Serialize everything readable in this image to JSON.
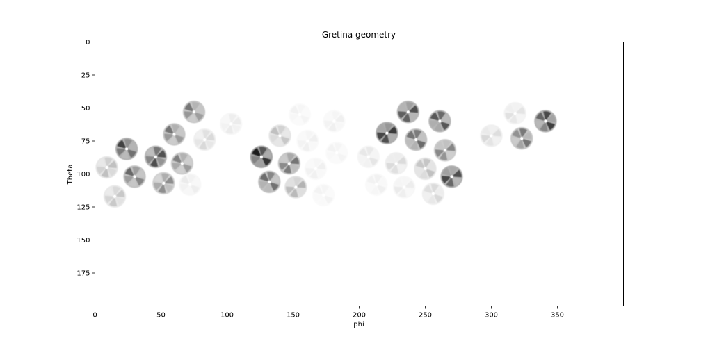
{
  "chart_data": {
    "type": "heatmap",
    "title": "Gretina geometry",
    "xlabel": "phi",
    "ylabel": "Theta",
    "xlim": [
      0,
      400
    ],
    "ylim": [
      200,
      0
    ],
    "x_ticks": [
      0,
      50,
      100,
      150,
      200,
      250,
      300,
      350
    ],
    "y_ticks": [
      0,
      25,
      50,
      75,
      100,
      125,
      150,
      175
    ],
    "colormap": "Greys",
    "grid": false,
    "blobs": [
      {
        "phi": 75,
        "theta": 53,
        "intensity": 0.55
      },
      {
        "phi": 103,
        "theta": 62,
        "intensity": 0.08
      },
      {
        "phi": 60,
        "theta": 70,
        "intensity": 0.55
      },
      {
        "phi": 83,
        "theta": 74,
        "intensity": 0.15
      },
      {
        "phi": 24,
        "theta": 81,
        "intensity": 0.75
      },
      {
        "phi": 46,
        "theta": 87,
        "intensity": 0.7
      },
      {
        "phi": 66,
        "theta": 92,
        "intensity": 0.5
      },
      {
        "phi": 9,
        "theta": 95,
        "intensity": 0.25
      },
      {
        "phi": 30,
        "theta": 102,
        "intensity": 0.6
      },
      {
        "phi": 52,
        "theta": 107,
        "intensity": 0.45
      },
      {
        "phi": 72,
        "theta": 108,
        "intensity": 0.08
      },
      {
        "phi": 15,
        "theta": 117,
        "intensity": 0.22
      },
      {
        "phi": 155,
        "theta": 55,
        "intensity": 0.05
      },
      {
        "phi": 181,
        "theta": 60,
        "intensity": 0.06
      },
      {
        "phi": 140,
        "theta": 71,
        "intensity": 0.25
      },
      {
        "phi": 161,
        "theta": 75,
        "intensity": 0.06
      },
      {
        "phi": 126,
        "theta": 87,
        "intensity": 0.9
      },
      {
        "phi": 147,
        "theta": 92,
        "intensity": 0.55
      },
      {
        "phi": 183,
        "theta": 84,
        "intensity": 0.05
      },
      {
        "phi": 167,
        "theta": 96,
        "intensity": 0.06
      },
      {
        "phi": 132,
        "theta": 106,
        "intensity": 0.6
      },
      {
        "phi": 152,
        "theta": 110,
        "intensity": 0.3
      },
      {
        "phi": 173,
        "theta": 116,
        "intensity": 0.05
      },
      {
        "phi": 237,
        "theta": 53,
        "intensity": 0.7
      },
      {
        "phi": 261,
        "theta": 60,
        "intensity": 0.7
      },
      {
        "phi": 221,
        "theta": 69,
        "intensity": 0.8
      },
      {
        "phi": 243,
        "theta": 74,
        "intensity": 0.6
      },
      {
        "phi": 265,
        "theta": 82,
        "intensity": 0.5
      },
      {
        "phi": 207,
        "theta": 87,
        "intensity": 0.1
      },
      {
        "phi": 228,
        "theta": 92,
        "intensity": 0.15
      },
      {
        "phi": 250,
        "theta": 96,
        "intensity": 0.25
      },
      {
        "phi": 270,
        "theta": 102,
        "intensity": 0.75
      },
      {
        "phi": 213,
        "theta": 108,
        "intensity": 0.06
      },
      {
        "phi": 234,
        "theta": 110,
        "intensity": 0.08
      },
      {
        "phi": 256,
        "theta": 115,
        "intensity": 0.15
      },
      {
        "phi": 318,
        "theta": 54,
        "intensity": 0.12
      },
      {
        "phi": 341,
        "theta": 60,
        "intensity": 0.75
      },
      {
        "phi": 300,
        "theta": 71,
        "intensity": 0.15
      },
      {
        "phi": 323,
        "theta": 73,
        "intensity": 0.55
      }
    ]
  }
}
